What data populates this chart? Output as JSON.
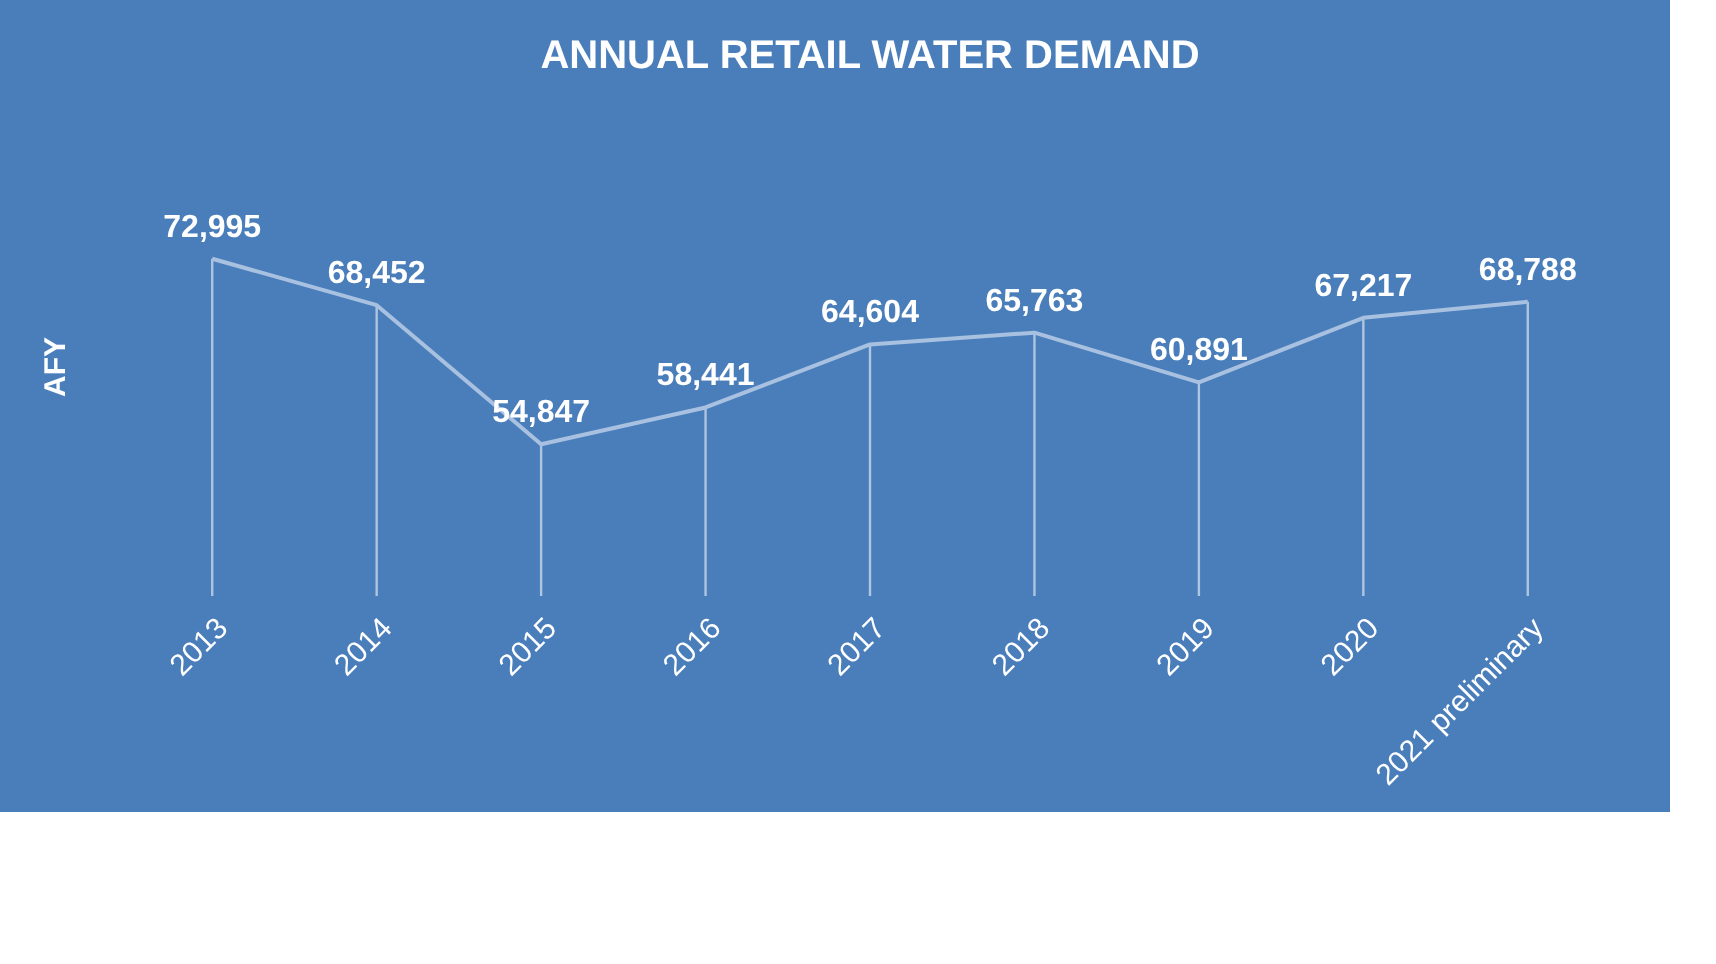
{
  "chart_data": {
    "type": "line",
    "title": "ANNUAL RETAIL WATER DEMAND",
    "ylabel": "AFY",
    "categories": [
      "2013",
      "2014",
      "2015",
      "2016",
      "2017",
      "2018",
      "2019",
      "2020",
      "2021 preliminary"
    ],
    "series": [
      {
        "color": "#a9c1e0",
        "values": [
          72995,
          68452,
          54847,
          58441,
          64604,
          65763,
          60891,
          67217,
          68788
        ],
        "value_labels": [
          "72,995",
          "68,452",
          "54,847",
          "58,441",
          "64,604",
          "65,763",
          "60,891",
          "67,217",
          "68,788"
        ]
      }
    ],
    "marker": "none",
    "grid": "x",
    "tick_labels": "x"
  }
}
